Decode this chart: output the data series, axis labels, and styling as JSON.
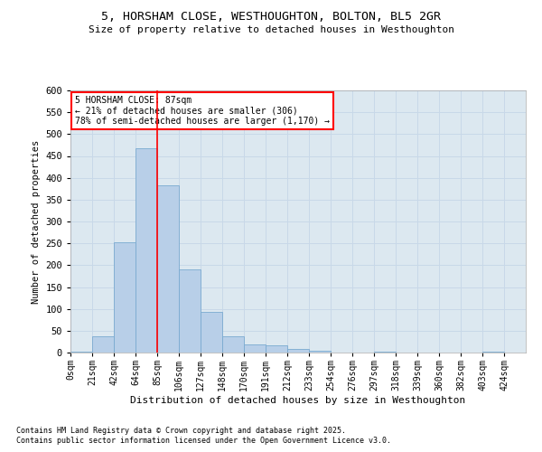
{
  "title_line1": "5, HORSHAM CLOSE, WESTHOUGHTON, BOLTON, BL5 2GR",
  "title_line2": "Size of property relative to detached houses in Westhoughton",
  "xlabel": "Distribution of detached houses by size in Westhoughton",
  "ylabel": "Number of detached properties",
  "categories": [
    "0sqm",
    "21sqm",
    "42sqm",
    "64sqm",
    "85sqm",
    "106sqm",
    "127sqm",
    "148sqm",
    "170sqm",
    "191sqm",
    "212sqm",
    "233sqm",
    "254sqm",
    "276sqm",
    "297sqm",
    "318sqm",
    "339sqm",
    "360sqm",
    "382sqm",
    "403sqm",
    "424sqm"
  ],
  "values": [
    3,
    37,
    253,
    467,
    383,
    191,
    93,
    37,
    18,
    17,
    9,
    4,
    0,
    0,
    3,
    0,
    0,
    0,
    0,
    2,
    0
  ],
  "bar_color": "#b8cfe8",
  "bar_edge_color": "#7aaad0",
  "annotation_text_line1": "5 HORSHAM CLOSE: 87sqm",
  "annotation_text_line2": "← 21% of detached houses are smaller (306)",
  "annotation_text_line3": "78% of semi-detached houses are larger (1,170) →",
  "annotation_box_color": "white",
  "annotation_box_edge": "red",
  "red_line_color": "red",
  "grid_color": "#c8d8e8",
  "background_color": "#dce8f0",
  "ylim": [
    0,
    600
  ],
  "yticks": [
    0,
    50,
    100,
    150,
    200,
    250,
    300,
    350,
    400,
    450,
    500,
    550,
    600
  ],
  "red_line_bin_index": 3,
  "footnote1": "Contains HM Land Registry data © Crown copyright and database right 2025.",
  "footnote2": "Contains public sector information licensed under the Open Government Licence v3.0."
}
